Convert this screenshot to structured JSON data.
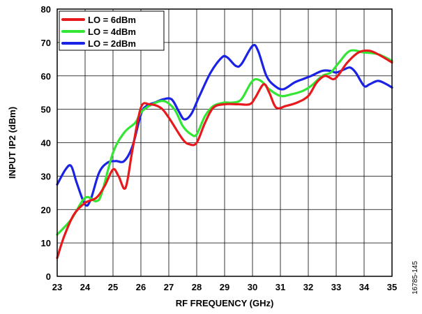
{
  "chart_data": {
    "type": "line",
    "xlabel": "RF FREQUENCY (GHz)",
    "ylabel": "INPUT IP2 (dBm)",
    "xlim": [
      23,
      35
    ],
    "ylim": [
      0,
      80
    ],
    "x_ticks": [
      23,
      24,
      25,
      26,
      27,
      28,
      29,
      30,
      31,
      32,
      33,
      34,
      35
    ],
    "y_ticks": [
      0,
      10,
      20,
      30,
      40,
      50,
      60,
      70,
      80
    ],
    "grid": true,
    "legend_position": "top-left",
    "figure_id": "16785-145",
    "series": [
      {
        "name": "LO = 6dBm",
        "color": "#e8191c",
        "points": [
          [
            23,
            5.5
          ],
          [
            23.25,
            12
          ],
          [
            23.6,
            18.5
          ],
          [
            24,
            22
          ],
          [
            24.4,
            23.5
          ],
          [
            24.7,
            27
          ],
          [
            25,
            32
          ],
          [
            25.2,
            30
          ],
          [
            25.45,
            26.5
          ],
          [
            25.7,
            38
          ],
          [
            26,
            50.5
          ],
          [
            26.3,
            51.5
          ],
          [
            26.7,
            50.5
          ],
          [
            27,
            47.5
          ],
          [
            27.5,
            41
          ],
          [
            27.75,
            39.5
          ],
          [
            28,
            40
          ],
          [
            28.3,
            46
          ],
          [
            28.6,
            50.5
          ],
          [
            29,
            51.5
          ],
          [
            29.5,
            51.5
          ],
          [
            29.9,
            51.5
          ],
          [
            30.1,
            53.5
          ],
          [
            30.4,
            57.5
          ],
          [
            30.6,
            55
          ],
          [
            30.85,
            50.5
          ],
          [
            31.2,
            51
          ],
          [
            31.6,
            52
          ],
          [
            32,
            54
          ],
          [
            32.3,
            58
          ],
          [
            32.6,
            60
          ],
          [
            32.9,
            59
          ],
          [
            33.1,
            60.5
          ],
          [
            33.4,
            64
          ],
          [
            33.8,
            67
          ],
          [
            34.2,
            67.5
          ],
          [
            34.6,
            66
          ],
          [
            35,
            64
          ]
        ]
      },
      {
        "name": "LO = 4dBm",
        "color": "#33e633",
        "points": [
          [
            23,
            12.5
          ],
          [
            23.5,
            17
          ],
          [
            24,
            23.5
          ],
          [
            24.4,
            22.5
          ],
          [
            24.6,
            25
          ],
          [
            25,
            37
          ],
          [
            25.4,
            43
          ],
          [
            25.8,
            46
          ],
          [
            26,
            49
          ],
          [
            26.3,
            51
          ],
          [
            26.8,
            52.5
          ],
          [
            27.2,
            50
          ],
          [
            27.5,
            45
          ],
          [
            27.8,
            42.5
          ],
          [
            28,
            42.5
          ],
          [
            28.3,
            48
          ],
          [
            28.6,
            51
          ],
          [
            29,
            52
          ],
          [
            29.3,
            52
          ],
          [
            29.6,
            53
          ],
          [
            30,
            58.5
          ],
          [
            30.3,
            58.5
          ],
          [
            30.6,
            56
          ],
          [
            31,
            54
          ],
          [
            31.4,
            54.5
          ],
          [
            31.8,
            55.5
          ],
          [
            32.1,
            57
          ],
          [
            32.5,
            60
          ],
          [
            32.8,
            61
          ],
          [
            33.1,
            64
          ],
          [
            33.5,
            67.5
          ],
          [
            34,
            67
          ],
          [
            34.5,
            66.5
          ],
          [
            35,
            64.5
          ]
        ]
      },
      {
        "name": "LO = 2dBm",
        "color": "#1a22e6",
        "points": [
          [
            23,
            27.5
          ],
          [
            23.3,
            32
          ],
          [
            23.5,
            33
          ],
          [
            23.7,
            28
          ],
          [
            24,
            21.5
          ],
          [
            24.2,
            23
          ],
          [
            24.5,
            31
          ],
          [
            24.8,
            34
          ],
          [
            25.1,
            34.5
          ],
          [
            25.4,
            34.5
          ],
          [
            25.7,
            39
          ],
          [
            26,
            48.5
          ],
          [
            26.2,
            51
          ],
          [
            26.5,
            52
          ],
          [
            26.8,
            53
          ],
          [
            27.1,
            53
          ],
          [
            27.35,
            49.5
          ],
          [
            27.55,
            47
          ],
          [
            27.8,
            48.5
          ],
          [
            28.1,
            54
          ],
          [
            28.5,
            61
          ],
          [
            28.9,
            65.5
          ],
          [
            29.1,
            65.5
          ],
          [
            29.4,
            63
          ],
          [
            29.6,
            63.5
          ],
          [
            30,
            69
          ],
          [
            30.2,
            67.5
          ],
          [
            30.5,
            60
          ],
          [
            30.8,
            57
          ],
          [
            31.1,
            56
          ],
          [
            31.5,
            58
          ],
          [
            31.8,
            59
          ],
          [
            32.1,
            60
          ],
          [
            32.5,
            61.5
          ],
          [
            32.8,
            61.5
          ],
          [
            33,
            61
          ],
          [
            33.3,
            62
          ],
          [
            33.5,
            62.5
          ],
          [
            33.7,
            61
          ],
          [
            34,
            57
          ],
          [
            34.2,
            57.5
          ],
          [
            34.5,
            58.5
          ],
          [
            34.8,
            57.5
          ],
          [
            35,
            56.5
          ]
        ]
      }
    ]
  }
}
